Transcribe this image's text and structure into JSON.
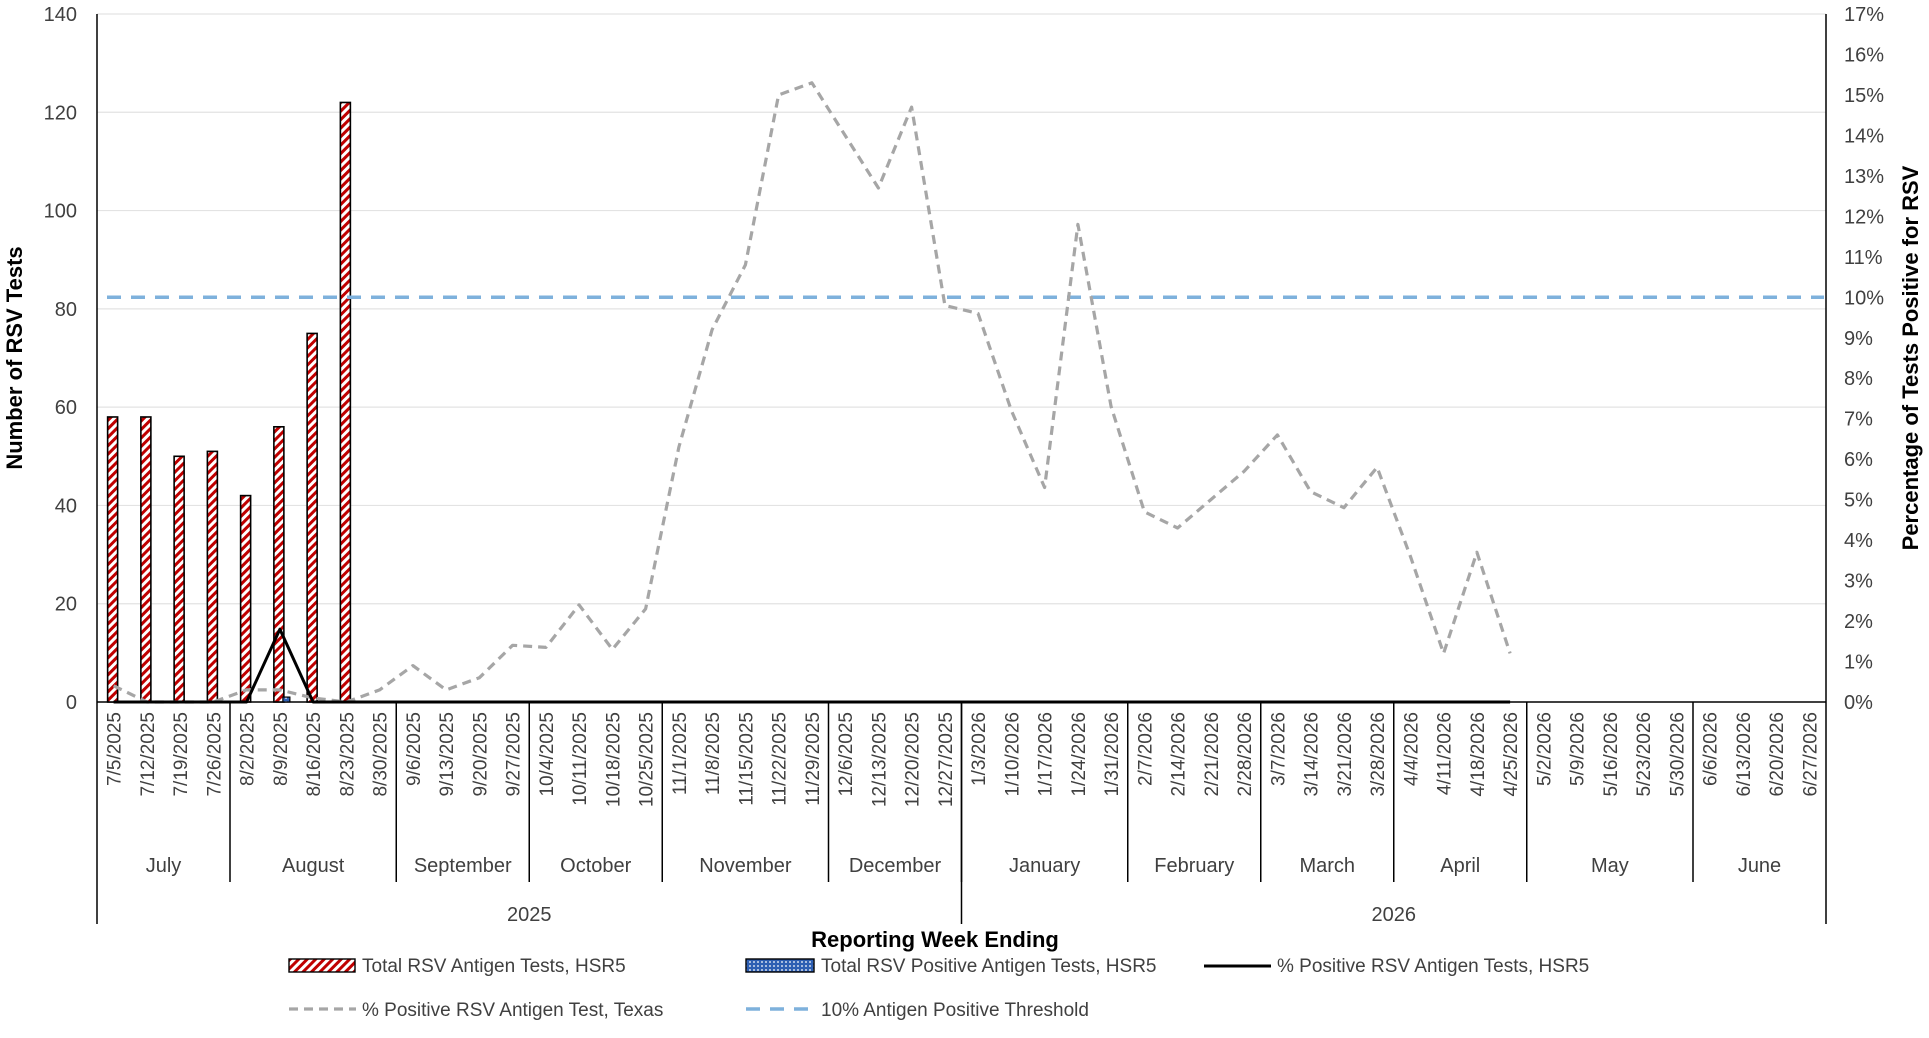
{
  "chart_data": {
    "type": "bar",
    "xlabel": "Reporting Week Ending",
    "ylabel": "Number of RSV Tests",
    "y2label": "Percentage of Tests Positive for RSV",
    "ylim": [
      0,
      140
    ],
    "y2lim": [
      0,
      17
    ],
    "yticks": [
      "0",
      "20",
      "40",
      "60",
      "80",
      "100",
      "120",
      "140"
    ],
    "y2ticks": [
      "0%",
      "1%",
      "2%",
      "3%",
      "4%",
      "5%",
      "6%",
      "7%",
      "8%",
      "9%",
      "10%",
      "11%",
      "12%",
      "13%",
      "14%",
      "15%",
      "16%",
      "17%"
    ],
    "grid": true,
    "legend_position": "bottom",
    "categories": [
      "7/5/2025",
      "7/12/2025",
      "7/19/2025",
      "7/26/2025",
      "8/2/2025",
      "8/9/2025",
      "8/16/2025",
      "8/23/2025",
      "8/30/2025",
      "9/6/2025",
      "9/13/2025",
      "9/20/2025",
      "9/27/2025",
      "10/4/2025",
      "10/11/2025",
      "10/18/2025",
      "10/25/2025",
      "11/1/2025",
      "11/8/2025",
      "11/15/2025",
      "11/22/2025",
      "11/29/2025",
      "12/6/2025",
      "12/13/2025",
      "12/20/2025",
      "12/27/2025",
      "1/3/2026",
      "1/10/2026",
      "1/17/2026",
      "1/24/2026",
      "1/31/2026",
      "2/7/2026",
      "2/14/2026",
      "2/21/2026",
      "2/28/2026",
      "3/7/2026",
      "3/14/2026",
      "3/21/2026",
      "3/28/2026",
      "4/4/2026",
      "4/11/2026",
      "4/18/2026",
      "4/25/2026",
      "5/2/2026",
      "5/9/2026",
      "5/16/2026",
      "5/23/2026",
      "5/30/2026",
      "6/6/2026",
      "6/13/2026",
      "6/20/2026",
      "6/27/2026"
    ],
    "months": [
      {
        "label": "July",
        "start": 0,
        "end": 4
      },
      {
        "label": "August",
        "start": 4,
        "end": 9
      },
      {
        "label": "September",
        "start": 9,
        "end": 13
      },
      {
        "label": "October",
        "start": 13,
        "end": 17
      },
      {
        "label": "November",
        "start": 17,
        "end": 22
      },
      {
        "label": "December",
        "start": 22,
        "end": 26
      },
      {
        "label": "January",
        "start": 26,
        "end": 31
      },
      {
        "label": "February",
        "start": 31,
        "end": 35
      },
      {
        "label": "March",
        "start": 35,
        "end": 39
      },
      {
        "label": "April",
        "start": 39,
        "end": 43
      },
      {
        "label": "May",
        "start": 43,
        "end": 48
      },
      {
        "label": "June",
        "start": 48,
        "end": 52
      }
    ],
    "years": [
      {
        "label": "2025",
        "start": 0,
        "end": 26
      },
      {
        "label": "2026",
        "start": 26,
        "end": 52
      }
    ],
    "series": [
      {
        "name": "Total RSV Antigen Tests, HSR5",
        "type": "bar",
        "axis": "left",
        "color": "#c00000",
        "pattern": "red-diagonal-stripes",
        "values": [
          58,
          58,
          50,
          51,
          42,
          56,
          75,
          122,
          null,
          null,
          null,
          null,
          null,
          null,
          null,
          null,
          null,
          null,
          null,
          null,
          null,
          null,
          null,
          null,
          null,
          null,
          null,
          null,
          null,
          null,
          null,
          null,
          null,
          null,
          null,
          null,
          null,
          null,
          null,
          null,
          null,
          null,
          null,
          null,
          null,
          null,
          null,
          null,
          null,
          null,
          null,
          null
        ]
      },
      {
        "name": "Total RSV Positive Antigen Tests, HSR5",
        "type": "bar",
        "axis": "left",
        "color": "#2e5fb3",
        "pattern": "blue-dotted",
        "values": [
          0,
          0,
          0,
          0,
          0,
          1,
          0,
          0,
          null,
          null,
          null,
          null,
          null,
          null,
          null,
          null,
          null,
          null,
          null,
          null,
          null,
          null,
          null,
          null,
          null,
          null,
          null,
          null,
          null,
          null,
          null,
          null,
          null,
          null,
          null,
          null,
          null,
          null,
          null,
          null,
          null,
          null,
          null,
          null,
          null,
          null,
          null,
          null,
          null,
          null,
          null,
          null
        ]
      },
      {
        "name": "% Positive RSV Antigen Tests, HSR5",
        "type": "line",
        "axis": "right",
        "color": "#000000",
        "dash": "solid",
        "values": [
          0,
          0,
          0,
          0,
          0,
          1.8,
          0,
          0,
          0,
          0,
          0,
          0,
          0,
          0,
          0,
          0,
          0,
          0,
          0,
          0,
          0,
          0,
          0,
          0,
          0,
          0,
          0,
          0,
          0,
          0,
          0,
          0,
          0,
          0,
          0,
          0,
          0,
          0,
          0,
          0,
          0,
          0,
          0,
          null,
          null,
          null,
          null,
          null,
          null,
          null,
          null,
          null
        ]
      },
      {
        "name": "% Positive RSV Antigen Test, Texas",
        "type": "line",
        "axis": "right",
        "color": "#a6a6a6",
        "dash": "dashed",
        "values": [
          0.4,
          0,
          0,
          0,
          0.3,
          0.3,
          0.1,
          0,
          0.3,
          0.9,
          0.3,
          0.6,
          1.4,
          1.35,
          2.4,
          1.3,
          2.3,
          6.3,
          9.2,
          10.8,
          15.0,
          15.3,
          14.0,
          12.7,
          14.7,
          9.8,
          9.6,
          7.2,
          5.3,
          11.8,
          7.3,
          4.7,
          4.3,
          5.0,
          5.7,
          6.6,
          5.2,
          4.8,
          5.8,
          3.6,
          1.2,
          3.7,
          1.2,
          null,
          null,
          null,
          null,
          null,
          null,
          null,
          null,
          null
        ]
      },
      {
        "name": "10% Antigen Positive Threshold",
        "type": "line",
        "axis": "right",
        "color": "#7eb1dc",
        "dash": "dashed",
        "values": [
          10,
          10,
          10,
          10,
          10,
          10,
          10,
          10,
          10,
          10,
          10,
          10,
          10,
          10,
          10,
          10,
          10,
          10,
          10,
          10,
          10,
          10,
          10,
          10,
          10,
          10,
          10,
          10,
          10,
          10,
          10,
          10,
          10,
          10,
          10,
          10,
          10,
          10,
          10,
          10,
          10,
          10,
          10,
          10,
          10,
          10,
          10,
          10,
          10,
          10,
          10,
          10
        ]
      }
    ]
  }
}
